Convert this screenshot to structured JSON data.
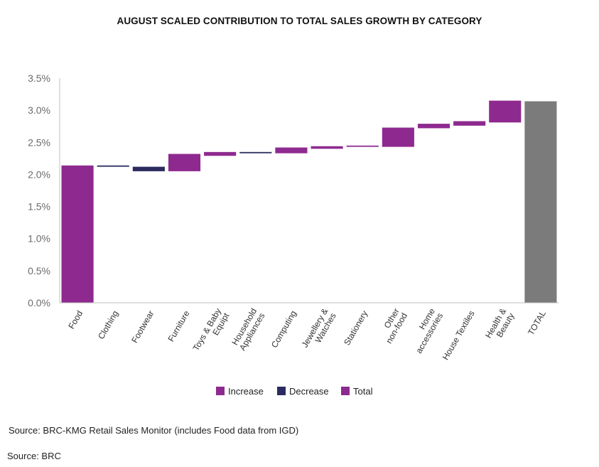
{
  "chart_data": {
    "type": "waterfall",
    "title": "AUGUST SCALED CONTRIBUTION TO TOTAL SALES GROWTH BY CATEGORY",
    "ylim": [
      0,
      3.5
    ],
    "yticks": [
      "0.0%",
      "0.5%",
      "1.0%",
      "1.5%",
      "2.0%",
      "2.5%",
      "3.0%",
      "3.5%"
    ],
    "ytick_values": [
      0,
      0.5,
      1.0,
      1.5,
      2.0,
      2.5,
      3.0,
      3.5
    ],
    "grid": false,
    "legend_position": "bottom",
    "categories": [
      {
        "label": [
          "Food"
        ],
        "start": 0.0,
        "end": 2.14,
        "kind": "increase"
      },
      {
        "label": [
          "Clothing"
        ],
        "start": 2.14,
        "end": 2.12,
        "kind": "decrease"
      },
      {
        "label": [
          "Footwear"
        ],
        "start": 2.12,
        "end": 2.05,
        "kind": "decrease"
      },
      {
        "label": [
          "Furniture"
        ],
        "start": 2.05,
        "end": 2.32,
        "kind": "increase"
      },
      {
        "label": [
          "Toys & Baby",
          "Equipt"
        ],
        "start": 2.29,
        "end": 2.35,
        "kind": "increase"
      },
      {
        "label": [
          "Household",
          "Appliances"
        ],
        "start": 2.35,
        "end": 2.33,
        "kind": "decrease"
      },
      {
        "label": [
          "Computing"
        ],
        "start": 2.33,
        "end": 2.42,
        "kind": "increase"
      },
      {
        "label": [
          "Jewellery &",
          "Watches"
        ],
        "start": 2.4,
        "end": 2.44,
        "kind": "increase"
      },
      {
        "label": [
          "Stationery"
        ],
        "start": 2.43,
        "end": 2.45,
        "kind": "increase"
      },
      {
        "label": [
          "Other",
          "non-food"
        ],
        "start": 2.43,
        "end": 2.73,
        "kind": "increase"
      },
      {
        "label": [
          "Home",
          "accessories"
        ],
        "start": 2.72,
        "end": 2.79,
        "kind": "increase"
      },
      {
        "label": [
          "House Textiles"
        ],
        "start": 2.76,
        "end": 2.83,
        "kind": "increase"
      },
      {
        "label": [
          "Health &",
          "Beauty"
        ],
        "start": 2.81,
        "end": 3.15,
        "kind": "increase"
      },
      {
        "label": [
          "TOTAL"
        ],
        "start": 0.0,
        "end": 3.14,
        "kind": "total"
      }
    ],
    "legend": [
      {
        "label": "Increase",
        "kind": "increase"
      },
      {
        "label": "Decrease",
        "kind": "decrease"
      },
      {
        "label": "Total",
        "kind": "total"
      }
    ],
    "colors": {
      "increase": "#8e2a8f",
      "decrease": "#2b2b5f",
      "total": "#7b7b7b",
      "legend_total": "#8e2a8f",
      "axis": "#bfbfbf"
    }
  },
  "sources": [
    "Source: BRC-KMG Retail Sales Monitor (includes Food data from IGD)",
    "Source: BRC"
  ]
}
